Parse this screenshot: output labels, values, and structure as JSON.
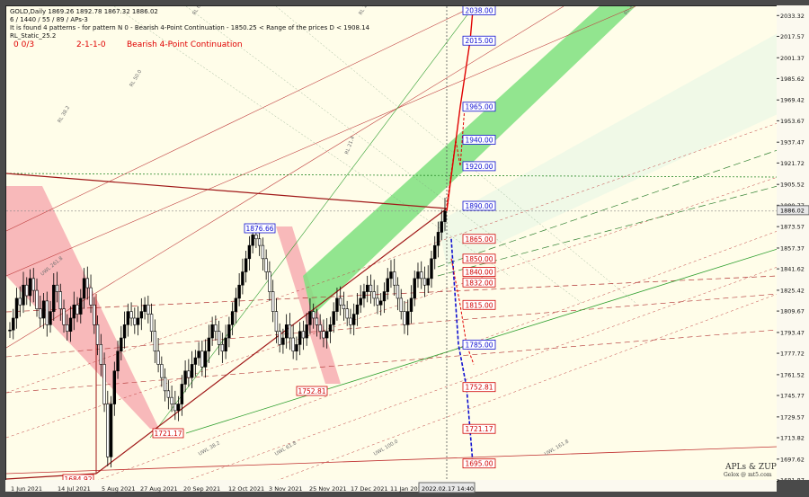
{
  "header": {
    "symbol_line": "GOLD,Daily  1869.26 1892.78 1867.32 1886.02",
    "line2": "6 / 1440 / 55 / 89 / APs-3",
    "line3": "It is found 4 patterns  -  for pattern N 0 - Bearish 4-Point Continuation  -  1850.25 < Range of the prices D < 1908.14",
    "line4": "RL_Static_25.2",
    "counter": "0     0/3",
    "pattern_code": "2-1-1-0",
    "pattern_name": "Bearish 4-Point Continuation"
  },
  "watermark": {
    "line1": "APLs & ZUP",
    "line2": "Gelox @ mt5.com"
  },
  "current_price_label": "1886.02",
  "cursor_date_label": "2022.02.17 14:40",
  "colors": {
    "up_channel": "#6fd86f",
    "bear_zone": "#f4a0a8",
    "red_line": "#c02020",
    "blue_line": "#1010d0",
    "green_line": "#20a020"
  },
  "chart_data": {
    "type": "candlestick",
    "title": "",
    "xlabel": "",
    "ylabel": "",
    "ylim": [
      1681.87,
      2041.0
    ],
    "y_ticks": [
      "2033.32",
      "2017.57",
      "2001.37",
      "1985.62",
      "1969.42",
      "1953.67",
      "1937.47",
      "1921.72",
      "1905.52",
      "1889.77",
      "1873.57",
      "1857.37",
      "1841.62",
      "1825.42",
      "1809.67",
      "1793.47",
      "1777.72",
      "1761.52",
      "1745.77",
      "1729.57",
      "1713.82",
      "1697.62",
      "1681.87"
    ],
    "x_ticks": [
      "1 Jun 2021",
      "14 Jul 2021",
      "5 Aug 2021",
      "27 Aug 2021",
      "20 Sep 2021",
      "12 Oct 2021",
      "3 Nov 2021",
      "25 Nov 2021",
      "17 Dec 2021",
      "11 Jan 2022",
      "2 Feb 2022"
    ],
    "candles_close_path": [
      1796,
      1805,
      1820,
      1815,
      1830,
      1822,
      1835,
      1826,
      1812,
      1805,
      1818,
      1800,
      1810,
      1830,
      1825,
      1812,
      1800,
      1795,
      1805,
      1815,
      1808,
      1820,
      1835,
      1828,
      1815,
      1800,
      1785,
      1770,
      1740,
      1700,
      1740,
      1765,
      1780,
      1790,
      1800,
      1810,
      1805,
      1800,
      1805,
      1810,
      1815,
      1808,
      1795,
      1780,
      1770,
      1760,
      1750,
      1745,
      1740,
      1735,
      1740,
      1755,
      1765,
      1760,
      1770,
      1775,
      1780,
      1768,
      1780,
      1790,
      1800,
      1795,
      1785,
      1780,
      1790,
      1800,
      1810,
      1820,
      1830,
      1840,
      1850,
      1860,
      1868,
      1865,
      1860,
      1850,
      1840,
      1825,
      1810,
      1795,
      1785,
      1790,
      1800,
      1790,
      1780,
      1785,
      1795,
      1790,
      1800,
      1810,
      1805,
      1800,
      1795,
      1790,
      1795,
      1800,
      1810,
      1820,
      1815,
      1812,
      1805,
      1800,
      1808,
      1815,
      1820,
      1825,
      1830,
      1825,
      1820,
      1815,
      1818,
      1825,
      1835,
      1840,
      1830,
      1820,
      1810,
      1800,
      1810,
      1820,
      1835,
      1840,
      1835,
      1830,
      1835,
      1850,
      1860,
      1870,
      1878,
      1886
    ],
    "price_labels": [
      {
        "text": "2038.00",
        "value": 2038,
        "color": "blue"
      },
      {
        "text": "2015.00",
        "value": 2015,
        "color": "blue"
      },
      {
        "text": "1965.00",
        "value": 1965,
        "color": "blue"
      },
      {
        "text": "1940.00",
        "value": 1940,
        "color": "blue"
      },
      {
        "text": "1920.00",
        "value": 1920,
        "color": "blue"
      },
      {
        "text": "1890.00",
        "value": 1890,
        "color": "blue"
      },
      {
        "text": "1865.00",
        "value": 1865,
        "color": "red"
      },
      {
        "text": "1850.00",
        "value": 1850,
        "color": "red"
      },
      {
        "text": "1840.00",
        "value": 1840,
        "color": "red"
      },
      {
        "text": "1832.00",
        "value": 1832,
        "color": "red"
      },
      {
        "text": "1815.00",
        "value": 1815,
        "color": "red"
      },
      {
        "text": "1785.00",
        "value": 1785,
        "color": "blue"
      },
      {
        "text": "1752.81",
        "value": 1752.81,
        "color": "red"
      },
      {
        "text": "1721.17",
        "value": 1721.17,
        "color": "red"
      },
      {
        "text": "1695.00",
        "value": 1695,
        "color": "red"
      }
    ],
    "pivot_labels": [
      {
        "text": "1876.66",
        "value": 1876.66
      },
      {
        "text": "1752.81",
        "value": 1752.81
      },
      {
        "text": "1721.17",
        "value": 1721.17
      },
      {
        "text": "1684.92",
        "value": 1684.92
      }
    ],
    "fibo_line_labels": [
      "RL 61.8",
      "RL 100.0",
      "RL 161.8",
      "RL 38.2",
      "RL 50.0",
      "UWL 38.2",
      "UWL 61.8",
      "UWL 100.0",
      "UWL 161.8",
      "UWL 261.8",
      "RL 21.4"
    ]
  }
}
